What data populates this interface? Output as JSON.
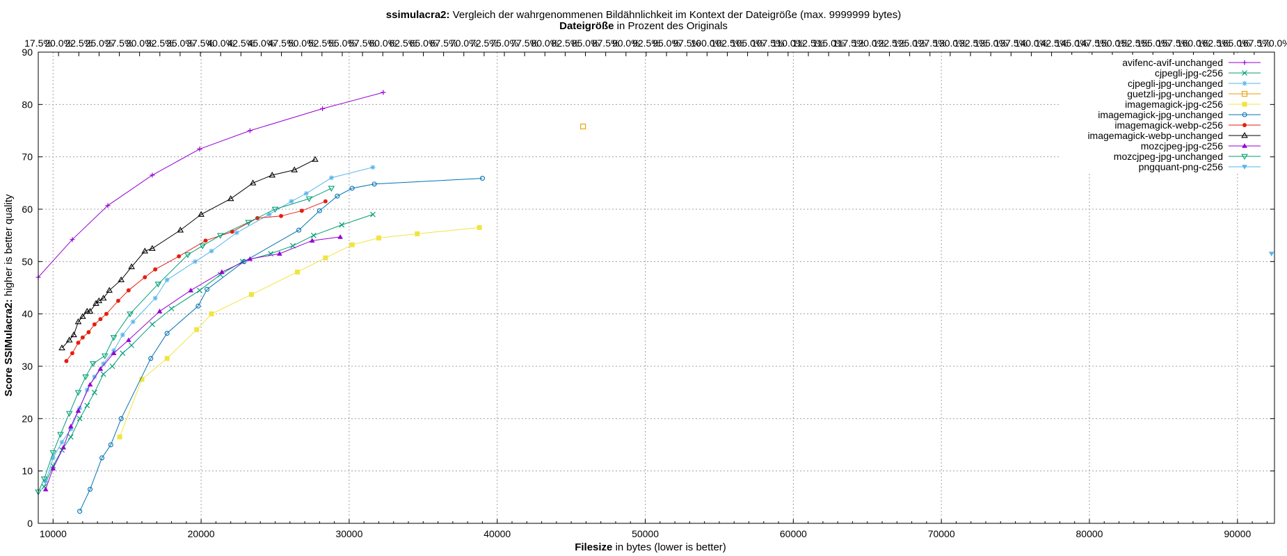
{
  "chart_data": {
    "type": "line",
    "title_bold": "ssimulacra2:",
    "title_rest": " Vergleich der wahrgenommenen Bildähnlichkeit im Kontext der Dateigröße (max. 9999999 bytes)",
    "subtitle_bold": "Dateigröße",
    "subtitle_rest": " in Prozent des Originals",
    "xlabel_bold": "Filesize",
    "xlabel_rest": " in bytes (lower is better)",
    "ylabel_bold": "Score SSIMulacra2:",
    "ylabel_rest": " higher is better quality",
    "xlim": [
      9000,
      92500
    ],
    "ylim": [
      0,
      90
    ],
    "x_ticks": [
      10000,
      20000,
      30000,
      40000,
      50000,
      60000,
      70000,
      80000,
      90000
    ],
    "y_ticks": [
      0,
      10,
      20,
      30,
      40,
      50,
      60,
      70,
      80,
      90
    ],
    "x2_ticks": [
      "17.5%",
      "20.0%",
      "22.5%",
      "25.0%",
      "27.5%",
      "30.0%",
      "32.5%",
      "35.0%",
      "37.5%",
      "40.0%",
      "42.5%",
      "45.0%",
      "47.5%",
      "50.0%",
      "52.5%",
      "55.0%",
      "57.5%",
      "60.0%",
      "62.5%",
      "65.0%",
      "67.5%",
      "70.0%",
      "72.5%",
      "75.0%",
      "77.5%",
      "80.0%",
      "82.5%",
      "85.0%",
      "87.5%",
      "90.0%",
      "92.5%",
      "95.0%",
      "97.5%",
      "100.0%",
      "102.5%",
      "105.0%",
      "107.5%",
      "110.0%",
      "112.5%",
      "115.0%",
      "117.5%",
      "120.0%",
      "122.5%",
      "125.0%",
      "127.5%",
      "130.0%",
      "132.5%",
      "135.0%",
      "137.5%",
      "140.0%",
      "142.5%",
      "145.0%",
      "147.5%",
      "150.0%",
      "152.5%",
      "155.0%",
      "157.5%",
      "160.0%",
      "162.5%",
      "165.0%",
      "167.5%",
      "170.0%"
    ],
    "grid": true,
    "legend_position": "top-right",
    "series": [
      {
        "name": "avifenc-avif-unchanged",
        "color": "#9400d3",
        "marker": "plus",
        "x": [
          9000,
          11300,
          13700,
          16700,
          19900,
          23300,
          28200,
          32300
        ],
        "y": [
          47.0,
          54.2,
          60.7,
          66.5,
          71.5,
          75.0,
          79.2,
          82.3
        ]
      },
      {
        "name": "cjpegli-jpg-c256",
        "color": "#009e73",
        "marker": "x",
        "x": [
          9400,
          10000,
          10600,
          11200,
          11800,
          12300,
          12800,
          13400,
          14000,
          14700,
          15300,
          16700,
          18000,
          19900,
          21300,
          22800,
          24700,
          26200,
          27600,
          29500,
          31600
        ],
        "y": [
          7.0,
          11.0,
          14.0,
          16.5,
          20.0,
          22.5,
          25.0,
          28.5,
          30.0,
          32.5,
          34.0,
          38.0,
          41.0,
          44.5,
          47.5,
          50.0,
          51.5,
          53.0,
          55.0,
          57.0,
          59.0
        ]
      },
      {
        "name": "cjpegli-jpg-unchanged",
        "color": "#56b4e9",
        "marker": "star",
        "x": [
          9500,
          10000,
          10600,
          11200,
          11800,
          12300,
          12800,
          13400,
          14100,
          14700,
          15400,
          16900,
          17700,
          19600,
          20700,
          22400,
          24600,
          26100,
          27100,
          28800,
          31600
        ],
        "y": [
          8.0,
          12.5,
          15.5,
          18.0,
          22.0,
          25.5,
          28.0,
          30.5,
          33.0,
          36.0,
          38.5,
          43.0,
          46.5,
          50.0,
          52.0,
          55.5,
          59.0,
          61.5,
          63.0,
          66.0,
          68.0
        ]
      },
      {
        "name": "guetzli-jpg-unchanged",
        "color": "#e69f00",
        "marker": "square-open",
        "x": [
          45800
        ],
        "y": [
          75.8
        ]
      },
      {
        "name": "imagemagick-jpg-c256",
        "color": "#f0e442",
        "marker": "square",
        "x": [
          14500,
          16000,
          17700,
          19700,
          20700,
          23400,
          26500,
          28400,
          30200,
          32000,
          34600,
          38800
        ],
        "y": [
          16.5,
          27.5,
          31.5,
          37.0,
          40.0,
          43.7,
          48.0,
          50.7,
          53.2,
          54.5,
          55.3,
          56.5
        ]
      },
      {
        "name": "imagemagick-jpg-unchanged",
        "color": "#0072b2",
        "marker": "circle-open",
        "x": [
          11800,
          12500,
          13300,
          13900,
          14600,
          16600,
          17700,
          19800,
          20400,
          22900,
          26600,
          28000,
          29200,
          30200,
          31700,
          39000
        ],
        "y": [
          2.3,
          6.5,
          12.5,
          15.0,
          20.0,
          31.5,
          36.3,
          41.5,
          44.7,
          50.0,
          56.0,
          59.7,
          62.5,
          64.0,
          64.8,
          65.9
        ]
      },
      {
        "name": "imagemagick-webp-c256",
        "color": "#e51e10",
        "marker": "circle",
        "x": [
          10900,
          11300,
          11700,
          12000,
          12400,
          12800,
          13200,
          13600,
          14400,
          15100,
          16200,
          16900,
          18500,
          20300,
          22100,
          23800,
          25400,
          26800,
          28400
        ],
        "y": [
          31.0,
          32.5,
          34.5,
          35.5,
          36.5,
          38.0,
          39.0,
          40.0,
          42.5,
          44.5,
          47.0,
          48.5,
          51.0,
          54.0,
          55.7,
          58.3,
          58.7,
          59.7,
          61.5
        ]
      },
      {
        "name": "imagemagick-webp-unchanged",
        "color": "#000000",
        "marker": "triangle-open",
        "x": [
          10600,
          11100,
          11400,
          11700,
          12000,
          12300,
          12500,
          12900,
          13100,
          13400,
          13800,
          14600,
          15300,
          16200,
          16700,
          18600,
          20000,
          22000,
          23500,
          24800,
          26300,
          27700
        ],
        "y": [
          33.5,
          35.0,
          36.0,
          38.5,
          39.5,
          40.5,
          40.5,
          42.0,
          42.5,
          43.0,
          44.5,
          46.5,
          49.0,
          52.0,
          52.5,
          56.0,
          59.0,
          62.0,
          65.0,
          66.5,
          67.5,
          69.5
        ]
      },
      {
        "name": "mozcjpeg-jpg-c256",
        "color": "#9400d3",
        "marker": "triangle",
        "x": [
          9500,
          10000,
          10700,
          11200,
          11700,
          12500,
          13200,
          14100,
          15100,
          17200,
          19300,
          21400,
          23300,
          25300,
          27500,
          29400
        ],
        "y": [
          6.5,
          10.5,
          14.5,
          18.5,
          21.5,
          26.5,
          29.5,
          32.5,
          35.0,
          40.5,
          44.5,
          48.0,
          50.5,
          51.5,
          54.0,
          54.7
        ]
      },
      {
        "name": "mozcjpeg-jpg-unchanged",
        "color": "#009e73",
        "marker": "triangle-down-open",
        "x": [
          9000,
          9400,
          10000,
          10500,
          11100,
          11700,
          12200,
          12700,
          13500,
          14100,
          15200,
          17100,
          19100,
          20100,
          21300,
          23200,
          25000,
          27300,
          28800
        ],
        "y": [
          6.0,
          8.5,
          13.5,
          17.0,
          21.0,
          25.0,
          28.0,
          30.5,
          32.0,
          35.5,
          40.0,
          45.7,
          51.3,
          53.0,
          55.0,
          57.5,
          60.0,
          62.0,
          64.0
        ]
      },
      {
        "name": "pngquant-png-c256",
        "color": "#56b4e9",
        "marker": "triangle-down",
        "x": [
          92300
        ],
        "y": [
          51.5
        ]
      }
    ]
  }
}
